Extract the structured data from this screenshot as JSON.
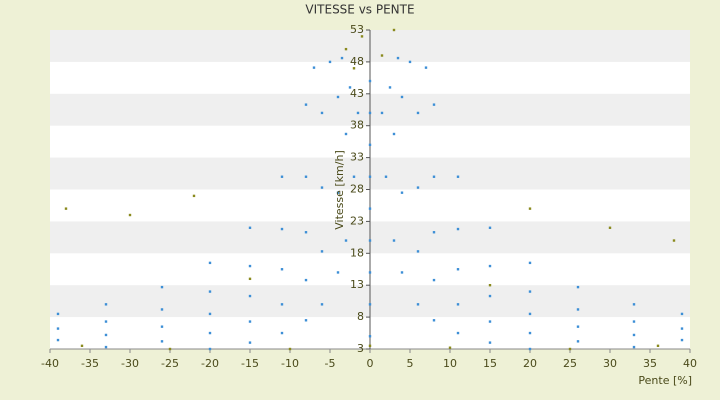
{
  "chart_data": {
    "type": "scatter",
    "title": "VITESSE vs PENTE",
    "x_label": "Pente [%]",
    "y_label": "Vitesse [km/h]",
    "xlim": [
      -40,
      40
    ],
    "xticks": [
      -40,
      -35,
      -30,
      -25,
      -20,
      -15,
      -10,
      -5,
      0,
      5,
      10,
      15,
      20,
      25,
      30,
      35,
      40
    ],
    "ylim": [
      3,
      53
    ],
    "yticks": [
      3,
      8,
      13,
      18,
      23,
      28,
      33,
      38,
      43,
      48,
      53
    ],
    "grid": true,
    "series": [
      {
        "color": "#3d8fd6",
        "x": [
          1.5,
          2,
          3,
          4,
          6,
          8,
          11,
          15,
          20,
          2.5,
          3,
          4,
          6,
          8,
          11,
          15,
          20,
          26,
          33,
          3.5,
          4,
          6,
          8,
          11,
          15,
          20,
          26,
          33,
          39,
          5,
          6,
          8,
          11,
          15,
          20,
          26,
          33,
          39,
          7,
          8,
          11,
          15,
          20,
          26,
          33,
          39,
          -1.5,
          -2,
          -3,
          -4,
          -6,
          -8,
          -11,
          -15,
          -20,
          -2.5,
          -3,
          -4,
          -6,
          -8,
          -11,
          -15,
          -20,
          -26,
          -33,
          -3.5,
          -4,
          -6,
          -8,
          -11,
          -15,
          -20,
          -26,
          -33,
          -39,
          -5,
          -6,
          -8,
          -11,
          -15,
          -20,
          -26,
          -33,
          -39,
          -7,
          -8,
          -11,
          -15,
          -20,
          -26,
          -33,
          -39,
          0,
          0,
          0,
          0,
          0,
          0,
          0,
          0,
          0
        ],
        "values": [
          40,
          30,
          20,
          15,
          10,
          7.5,
          5.5,
          4,
          3,
          44,
          36.7,
          27.5,
          18.3,
          13.8,
          10,
          7.3,
          5.5,
          4.2,
          3.3,
          48.6,
          42.5,
          28.3,
          21.3,
          15.5,
          11.3,
          8.5,
          6.5,
          5.2,
          4.4,
          48,
          40,
          30,
          21.8,
          16,
          12,
          9.2,
          7.3,
          6.2,
          47.1,
          41.3,
          30,
          22,
          16.5,
          12.7,
          10,
          8.5,
          40,
          30,
          20,
          15,
          10,
          7.5,
          5.5,
          4,
          3,
          44,
          36.7,
          27.5,
          18.3,
          13.8,
          10,
          7.3,
          5.5,
          4.2,
          3.3,
          48.6,
          42.5,
          28.3,
          21.3,
          15.5,
          11.3,
          8.5,
          6.5,
          5.2,
          4.4,
          48,
          40,
          30,
          21.8,
          16,
          12,
          9.2,
          7.3,
          6.2,
          47.1,
          41.3,
          30,
          22,
          16.5,
          12.7,
          10,
          8.5,
          5,
          10,
          15,
          20,
          25,
          30,
          35,
          40,
          45
        ]
      },
      {
        "color": "#8a8a1e",
        "x": [
          -3,
          -2,
          3,
          -22,
          -30,
          20,
          30,
          -36,
          36,
          -10,
          10,
          -25,
          25,
          0,
          -1,
          1.5,
          -15,
          15,
          -38,
          38
        ],
        "values": [
          50,
          47,
          53,
          27,
          24,
          25,
          22,
          3.5,
          3.5,
          3,
          3.2,
          3,
          3,
          3.5,
          52,
          49,
          14,
          13,
          25,
          20
        ]
      }
    ]
  }
}
